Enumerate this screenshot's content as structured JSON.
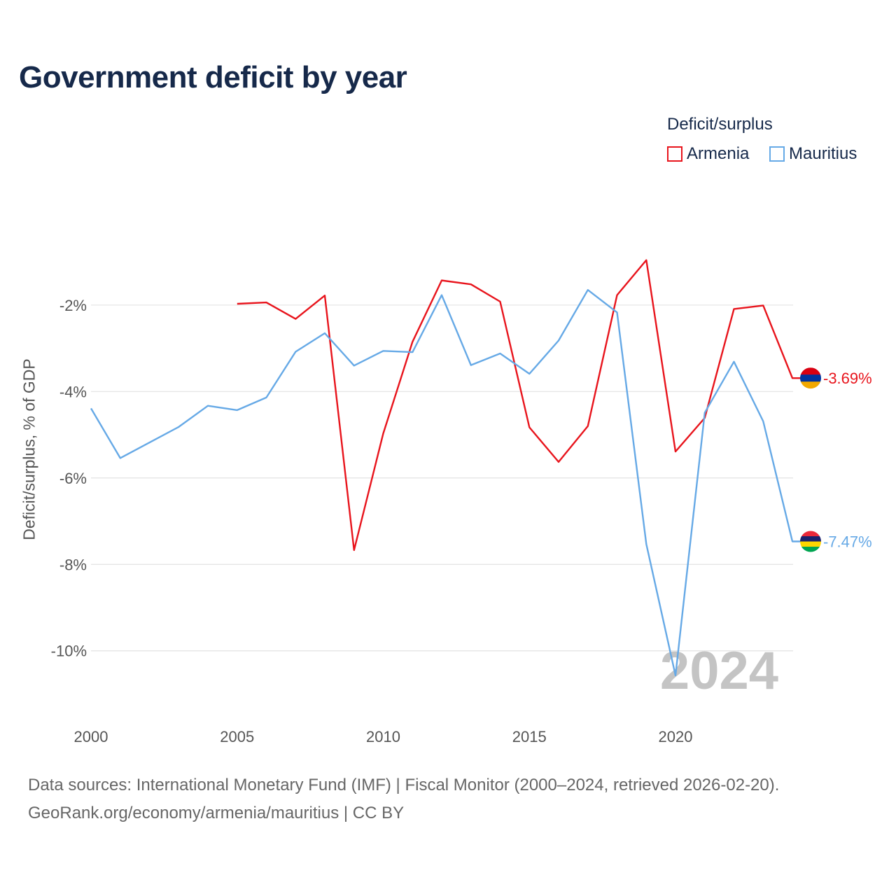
{
  "title": "Government deficit by year",
  "legend": {
    "title": "Deficit/surplus",
    "items": [
      {
        "label": "Armenia",
        "color": "#e8141c"
      },
      {
        "label": "Mauritius",
        "color": "#66a9e6"
      }
    ]
  },
  "footer": {
    "source": "Data sources: International Monetary Fund (IMF) | Fiscal Monitor (2000–2024, retrieved 2026-02-20).",
    "credit": "GeoRank.org/economy/armenia/mauritius | CC BY"
  },
  "chart_data": {
    "type": "line",
    "title": "Government deficit by year",
    "xlabel": "",
    "ylabel": "Deficit/surplus, % of GDP",
    "xlim": [
      2000,
      2024
    ],
    "ylim": [
      -11.3,
      0.2
    ],
    "x_ticks": [
      2000,
      2005,
      2010,
      2015,
      2020
    ],
    "y_ticks": [
      -2,
      -4,
      -6,
      -8,
      -10
    ],
    "y_tick_labels": [
      "-2%",
      "-4%",
      "-6%",
      "-8%",
      "-10%"
    ],
    "watermark_year": "2024",
    "grid": true,
    "series": [
      {
        "name": "Armenia",
        "color": "#e8141c",
        "x": [
          2005,
          2006,
          2007,
          2008,
          2009,
          2010,
          2011,
          2012,
          2013,
          2014,
          2015,
          2016,
          2017,
          2018,
          2019,
          2020,
          2021,
          2022,
          2023,
          2024
        ],
        "values": [
          -1.97,
          -1.94,
          -2.32,
          -1.78,
          -7.67,
          -4.97,
          -2.85,
          -1.43,
          -1.52,
          -1.92,
          -4.83,
          -5.63,
          -4.8,
          -1.77,
          -0.96,
          -5.39,
          -4.61,
          -2.09,
          -2.01,
          -3.69
        ],
        "end_label": "-3.69%",
        "flag": "armenia"
      },
      {
        "name": "Mauritius",
        "color": "#66a9e6",
        "x": [
          2000,
          2001,
          2002,
          2003,
          2004,
          2005,
          2006,
          2007,
          2008,
          2009,
          2010,
          2011,
          2012,
          2013,
          2014,
          2015,
          2016,
          2017,
          2018,
          2019,
          2020,
          2021,
          2022,
          2023,
          2024
        ],
        "values": [
          -4.39,
          -5.54,
          -5.18,
          -4.82,
          -4.33,
          -4.43,
          -4.14,
          -3.08,
          -2.65,
          -3.4,
          -3.06,
          -3.09,
          -1.77,
          -3.39,
          -3.12,
          -3.59,
          -2.82,
          -1.65,
          -2.17,
          -7.53,
          -10.57,
          -4.49,
          -3.31,
          -4.69,
          -7.47
        ],
        "end_label": "-7.47%",
        "flag": "mauritius"
      }
    ]
  }
}
